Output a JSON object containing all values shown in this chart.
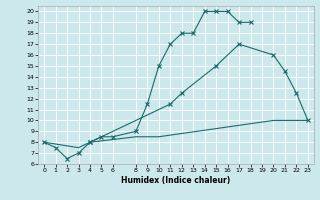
{
  "xlabel": "Humidex (Indice chaleur)",
  "bg_color": "#cce8ec",
  "line_color": "#1a6b6b",
  "grid_color": "#ffffff",
  "xlim": [
    -0.5,
    23.5
  ],
  "ylim": [
    6,
    20.5
  ],
  "xticks": [
    0,
    1,
    2,
    3,
    4,
    5,
    6,
    8,
    9,
    10,
    11,
    12,
    13,
    14,
    15,
    16,
    17,
    18,
    19,
    20,
    21,
    22,
    23
  ],
  "yticks": [
    6,
    7,
    8,
    9,
    10,
    11,
    12,
    13,
    14,
    15,
    16,
    17,
    18,
    19,
    20
  ],
  "c1x": [
    0,
    1,
    2,
    3,
    4,
    5,
    6,
    8,
    9,
    10,
    11,
    12,
    13,
    14,
    15,
    16,
    17,
    18
  ],
  "c1y": [
    8,
    7.5,
    6.5,
    7,
    8,
    8.5,
    8.5,
    9,
    11.5,
    15,
    17,
    18,
    18,
    20,
    20,
    20,
    19,
    19
  ],
  "c2x": [
    4,
    11,
    12,
    15,
    17,
    20,
    21,
    22,
    23
  ],
  "c2y": [
    8,
    11.5,
    12.5,
    15,
    17,
    16,
    14.5,
    12.5,
    10
  ],
  "c3x": [
    0,
    3,
    4,
    8,
    9,
    10,
    20,
    23
  ],
  "c3y": [
    8,
    7.5,
    8,
    8.5,
    8.5,
    8.5,
    10,
    10
  ]
}
